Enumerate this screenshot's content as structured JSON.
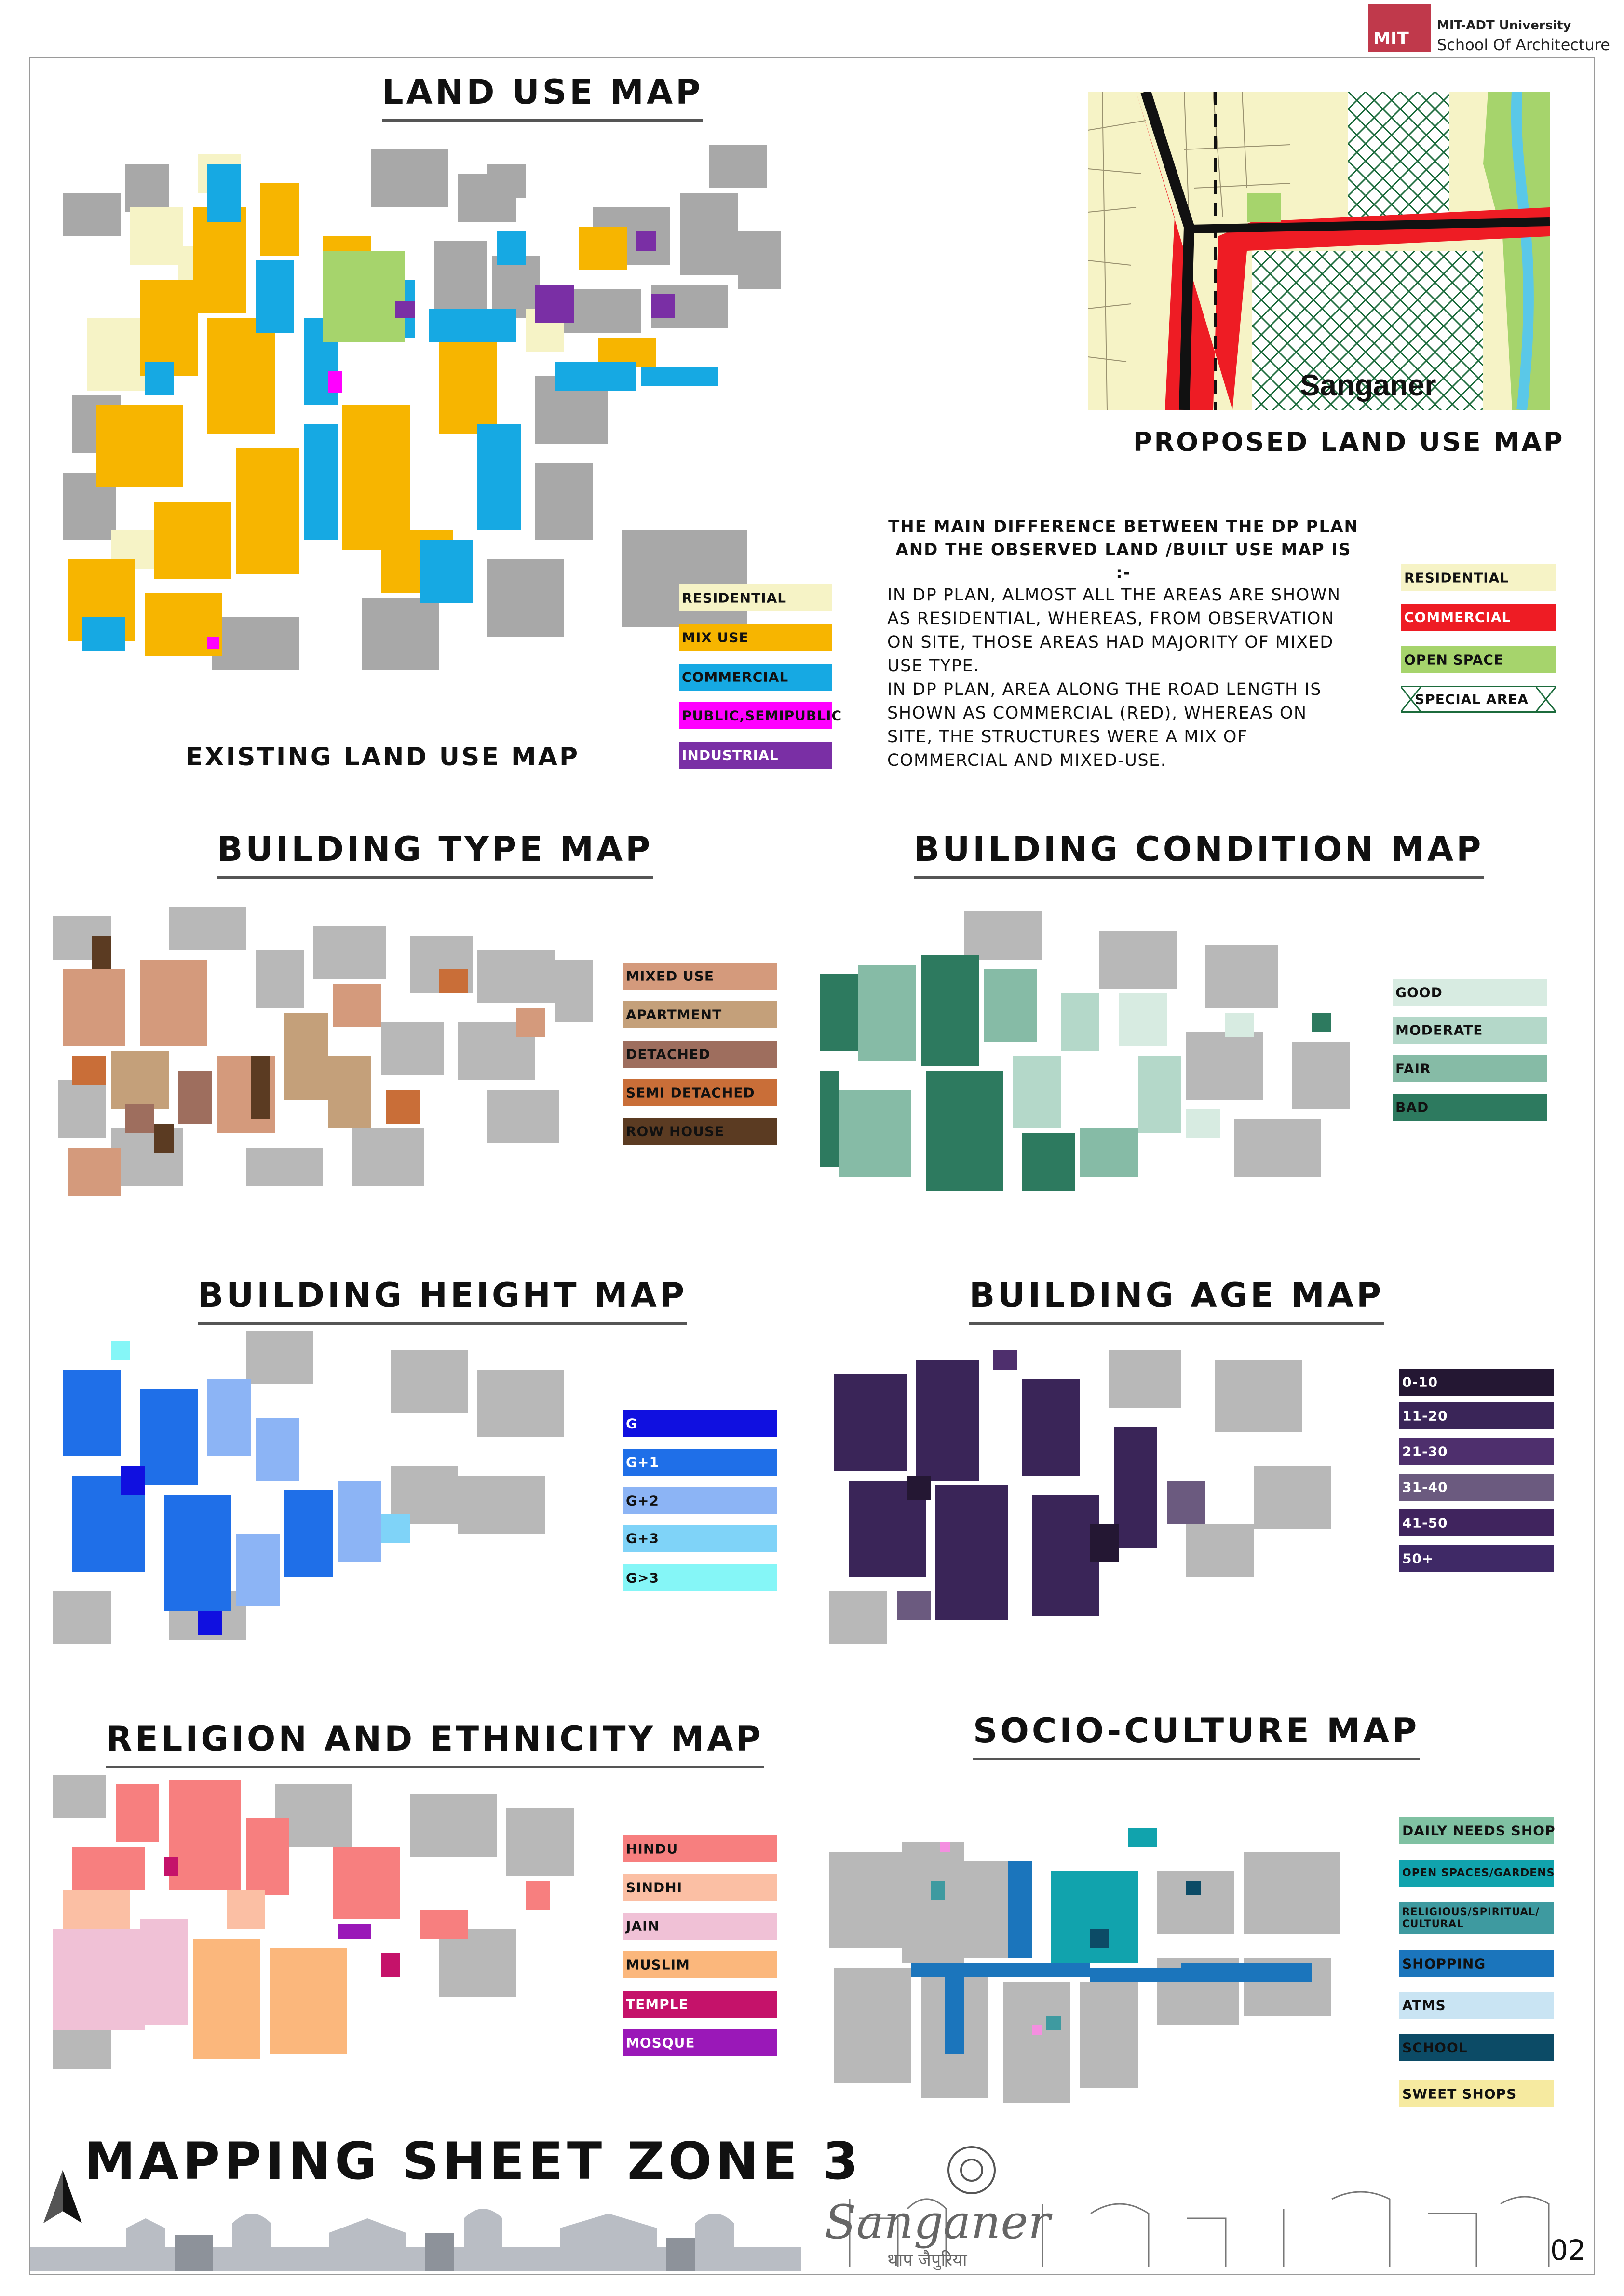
{
  "header": {
    "logo_text": "MIT",
    "university": "MIT-ADT University",
    "school": "School Of Architecture"
  },
  "land_use": {
    "title": "LAND USE MAP",
    "existing_label": "EXISTING LAND USE MAP",
    "proposed_label": "PROPOSED LAND USE MAP",
    "proposed_map_place": "Sanganer",
    "existing_legend": [
      {
        "label": "RESIDENTIAL",
        "color": "#f6f3c6"
      },
      {
        "label": "MIX USE",
        "color": "#f7b500"
      },
      {
        "label": "COMMERCIAL",
        "color": "#16a9e3"
      },
      {
        "label": "PUBLIC,SEMIPUBLIC",
        "color": "#ff00ff"
      },
      {
        "label": "INDUSTRIAL",
        "color": "#7a2fa5"
      }
    ],
    "proposed_legend": [
      {
        "label": "RESIDENTIAL",
        "color": "#f6f3c6"
      },
      {
        "label": "COMMERCIAL",
        "color": "#ee1c24"
      },
      {
        "label": "OPEN SPACE",
        "color": "#a6d46c"
      },
      {
        "label": "SPECIAL AREA",
        "color": "#ffffff"
      }
    ],
    "note_title": "THE MAIN DIFFERENCE BETWEEN THE DP PLAN\nAND THE OBSERVED LAND /BUILT USE MAP IS :-",
    "note_body": "IN DP PLAN, ALMOST ALL THE AREAS ARE SHOWN\nAS RESIDENTIAL, WHEREAS, FROM OBSERVATION\nON SITE, THOSE AREAS HAD MAJORITY OF MIXED\nUSE TYPE.\nIN DP PLAN, AREA ALONG THE ROAD LENGTH IS\nSHOWN AS COMMERCIAL (RED), WHEREAS ON\nSITE, THE STRUCTURES WERE A MIX OF\nCOMMERCIAL AND MIXED-USE."
  },
  "building_type": {
    "title": "BUILDING TYPE MAP",
    "legend": [
      {
        "label": "MIXED USE",
        "color": "#d49a7c"
      },
      {
        "label": "APARTMENT",
        "color": "#c4a07a"
      },
      {
        "label": "DETACHED",
        "color": "#9e6e5e"
      },
      {
        "label": "SEMI DETACHED",
        "color": "#c96e38"
      },
      {
        "label": "ROW HOUSE",
        "color": "#5b3b22"
      }
    ]
  },
  "building_condition": {
    "title": "BUILDING CONDITION MAP",
    "legend": [
      {
        "label": "GOOD",
        "color": "#d7ebe1"
      },
      {
        "label": "MODERATE",
        "color": "#b4d8c9"
      },
      {
        "label": "FAIR",
        "color": "#86bba6"
      },
      {
        "label": "BAD",
        "color": "#2d7a5f"
      }
    ]
  },
  "building_height": {
    "title": "BUILDING HEIGHT MAP",
    "legend": [
      {
        "label": "G",
        "color": "#1010e0"
      },
      {
        "label": "G+1",
        "color": "#1f6fe8"
      },
      {
        "label": "G+2",
        "color": "#8cb4f5"
      },
      {
        "label": "G+3",
        "color": "#7fd3f8"
      },
      {
        "label": "G>3",
        "color": "#85f6f7"
      }
    ]
  },
  "building_age": {
    "title": "BUILDING AGE MAP",
    "legend": [
      {
        "label": "0-10",
        "color": "#241733"
      },
      {
        "label": "11-20",
        "color": "#3a2558"
      },
      {
        "label": "21-30",
        "color": "#4e2f6d"
      },
      {
        "label": "31-40",
        "color": "#6b5a7f"
      },
      {
        "label": "41-50",
        "color": "#40245e"
      },
      {
        "label": "50+",
        "color": "#3f2966"
      }
    ]
  },
  "religion": {
    "title": "RELIGION AND ETHNICITY MAP",
    "legend": [
      {
        "label": "HINDU",
        "color": "#f77f7f"
      },
      {
        "label": "SINDHI",
        "color": "#fbbfa4"
      },
      {
        "label": "JAIN",
        "color": "#f0c1d6"
      },
      {
        "label": "MUSLIM",
        "color": "#fbb77c"
      },
      {
        "label": "TEMPLE",
        "color": "#c5126a"
      },
      {
        "label": "MOSQUE",
        "color": "#9a18b8"
      }
    ]
  },
  "socio_culture": {
    "title": "SOCIO-CULTURE MAP",
    "legend": [
      {
        "label": "DAILY NEEDS SHOP",
        "color": "#7fc1a2"
      },
      {
        "label": "OPEN SPACES/GARDENS",
        "color": "#11a3ad"
      },
      {
        "label": "RELIGIOUS/SPIRITUAL/\nCULTURAL",
        "color": "#3e9aa0"
      },
      {
        "label": "SHOPPING",
        "color": "#1b75bc"
      },
      {
        "label": "ATMS",
        "color": "#c9e4f3"
      },
      {
        "label": "SCHOOL",
        "color": "#0c4b66"
      },
      {
        "label": "SWEET SHOPS",
        "color": "#f6eaa0"
      }
    ]
  },
  "footer": {
    "sheet_title": "MAPPING SHEET ZONE 3",
    "brand": "Sanganer",
    "brand_hindi": "थाप जैपुरिया",
    "page_number": "02"
  }
}
